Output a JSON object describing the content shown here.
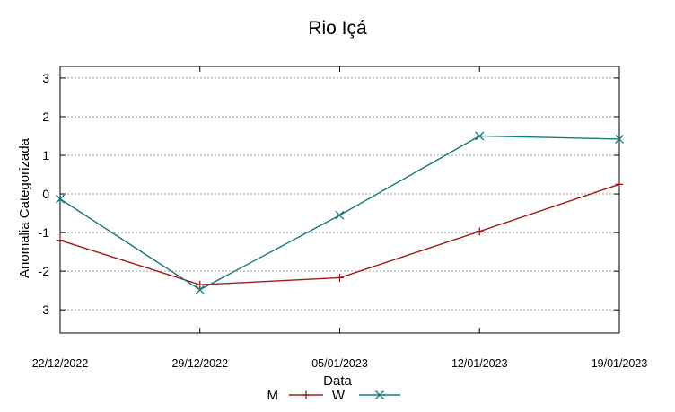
{
  "chart_data": {
    "type": "line",
    "title": "Rio Içá",
    "xlabel": "Data",
    "ylabel": "Anomalia Categorizada",
    "categories": [
      "22/12/2022",
      "29/12/2022",
      "05/01/2023",
      "12/01/2023",
      "19/01/2023"
    ],
    "ylim": [
      -3.6,
      3.3
    ],
    "yticks": [
      -3,
      -2,
      -1,
      0,
      1,
      2,
      3
    ],
    "grid": true,
    "legend": "bottom-center",
    "series": [
      {
        "name": "M",
        "color": "#a01b1b",
        "marker": "plus",
        "values": [
          -1.2,
          -2.35,
          -2.17,
          -0.97,
          0.25
        ]
      },
      {
        "name": "W",
        "color": "#117a7a",
        "marker": "cross",
        "values": [
          -0.13,
          -2.48,
          -0.55,
          1.5,
          1.42
        ]
      }
    ]
  }
}
